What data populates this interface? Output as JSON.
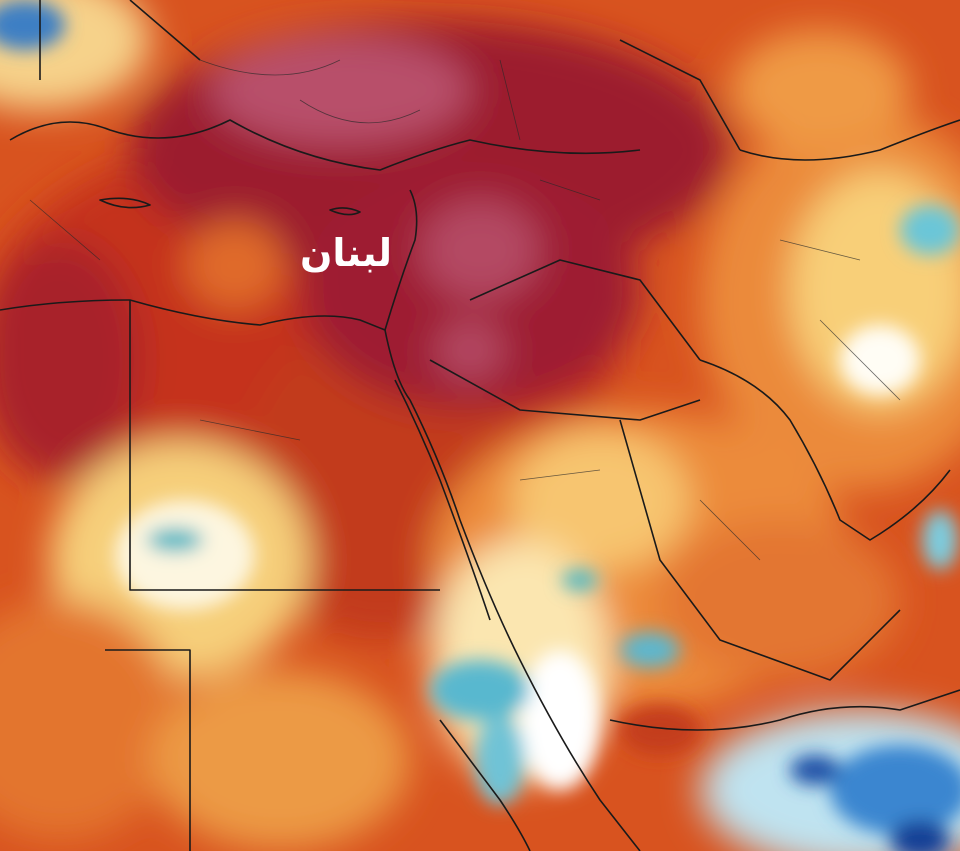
{
  "map": {
    "label": "لبنان"
  }
}
